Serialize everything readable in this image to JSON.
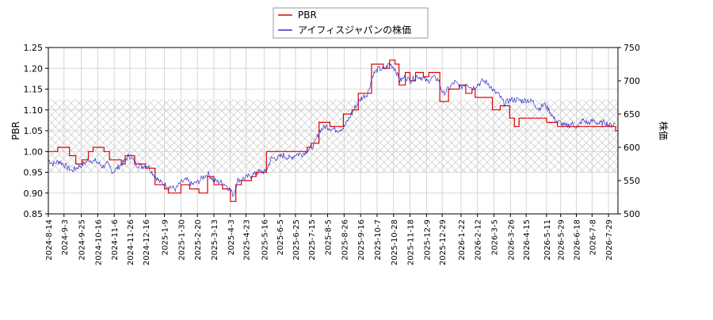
{
  "chart_data": {
    "type": "line",
    "title": "",
    "legend": {
      "placement": "top-center",
      "entries": [
        {
          "name": "PBR",
          "color": "#dd0000"
        },
        {
          "name": "アイフィスジャパンの株価",
          "color": "#3333cc"
        }
      ]
    },
    "xlabel": "",
    "ylabel_left": "PBR",
    "ylabel_right": "株価",
    "ylim_left": [
      0.85,
      1.25
    ],
    "ylim_right": [
      500,
      750
    ],
    "yticks_left": [
      "0.85",
      "0.90",
      "0.95",
      "1.00",
      "1.05",
      "1.10",
      "1.15",
      "1.20",
      "1.25"
    ],
    "yticks_right": [
      "500",
      "550",
      "600",
      "650",
      "700",
      "750"
    ],
    "xlim": [
      "2024-08-14",
      "2026-08-10"
    ],
    "xticks": [
      "2024-8-14",
      "2024-9-3",
      "2024-9-25",
      "2024-10-16",
      "2024-11-6",
      "2024-11-26",
      "2024-12-16",
      "2025-1-9",
      "2025-1-30",
      "2025-2-20",
      "2025-3-13",
      "2025-4-3",
      "2025-4-23",
      "2025-5-16",
      "2025-6-5",
      "2025-6-25",
      "2025-7-15",
      "2025-8-5",
      "2025-8-26",
      "2025-9-16",
      "2025-10-7",
      "2025-10-28",
      "2025-11-18",
      "2025-12-9",
      "2025-12-29",
      "2026-1-22",
      "2026-2-12",
      "2026-3-5",
      "2026-3-26",
      "2026-4-15",
      "2026-5-11",
      "2026-5-29",
      "2026-6-18",
      "2026-7-8",
      "2026-7-29"
    ],
    "grid": true,
    "shaded_band_pbr": [
      0.95,
      1.125
    ],
    "series": [
      {
        "name": "PBR",
        "axis": "left",
        "color": "#dd0000",
        "step": true,
        "points": [
          [
            "2024-08-14",
            1.0
          ],
          [
            "2024-08-26",
            1.01
          ],
          [
            "2024-09-10",
            0.99
          ],
          [
            "2024-09-18",
            0.97
          ],
          [
            "2024-09-26",
            0.98
          ],
          [
            "2024-10-04",
            1.0
          ],
          [
            "2024-10-10",
            1.01
          ],
          [
            "2024-10-24",
            1.0
          ],
          [
            "2024-10-31",
            0.98
          ],
          [
            "2024-11-15",
            0.97
          ],
          [
            "2024-11-20",
            0.99
          ],
          [
            "2024-12-02",
            0.97
          ],
          [
            "2024-12-16",
            0.96
          ],
          [
            "2024-12-28",
            0.92
          ],
          [
            "2025-01-09",
            0.91
          ],
          [
            "2025-01-14",
            0.9
          ],
          [
            "2025-01-30",
            0.92
          ],
          [
            "2025-02-10",
            0.91
          ],
          [
            "2025-02-22",
            0.9
          ],
          [
            "2025-03-05",
            0.94
          ],
          [
            "2025-03-13",
            0.92
          ],
          [
            "2025-03-24",
            0.91
          ],
          [
            "2025-04-03",
            0.88
          ],
          [
            "2025-04-10",
            0.92
          ],
          [
            "2025-04-17",
            0.93
          ],
          [
            "2025-04-30",
            0.94
          ],
          [
            "2025-05-06",
            0.95
          ],
          [
            "2025-05-19",
            1.0
          ],
          [
            "2025-07-10",
            1.01
          ],
          [
            "2025-07-15",
            1.02
          ],
          [
            "2025-07-25",
            1.07
          ],
          [
            "2025-08-08",
            1.06
          ],
          [
            "2025-08-18",
            1.06
          ],
          [
            "2025-08-25",
            1.09
          ],
          [
            "2025-09-05",
            1.1
          ],
          [
            "2025-09-13",
            1.14
          ],
          [
            "2025-09-30",
            1.21
          ],
          [
            "2025-10-15",
            1.2
          ],
          [
            "2025-10-23",
            1.22
          ],
          [
            "2025-10-30",
            1.21
          ],
          [
            "2025-11-04",
            1.16
          ],
          [
            "2025-11-12",
            1.19
          ],
          [
            "2025-11-18",
            1.17
          ],
          [
            "2025-11-25",
            1.19
          ],
          [
            "2025-12-05",
            1.18
          ],
          [
            "2025-12-12",
            1.19
          ],
          [
            "2025-12-26",
            1.12
          ],
          [
            "2026-01-06",
            1.15
          ],
          [
            "2026-01-20",
            1.16
          ],
          [
            "2026-01-28",
            1.14
          ],
          [
            "2026-02-05",
            1.15
          ],
          [
            "2026-02-09",
            1.13
          ],
          [
            "2026-02-25",
            1.13
          ],
          [
            "2026-03-03",
            1.1
          ],
          [
            "2026-03-13",
            1.11
          ],
          [
            "2026-03-25",
            1.08
          ],
          [
            "2026-03-31",
            1.06
          ],
          [
            "2026-04-06",
            1.08
          ],
          [
            "2026-04-24",
            1.08
          ],
          [
            "2026-05-11",
            1.07
          ],
          [
            "2026-05-25",
            1.06
          ],
          [
            "2026-08-07",
            1.05
          ]
        ]
      },
      {
        "name": "アイフィスジャパンの株価",
        "axis": "right",
        "color": "#3333cc",
        "step": false,
        "points": [
          [
            "2024-08-14",
            581
          ],
          [
            "2024-08-20",
            575
          ],
          [
            "2024-08-28",
            579
          ],
          [
            "2024-09-05",
            572
          ],
          [
            "2024-09-13",
            565
          ],
          [
            "2024-09-20",
            570
          ],
          [
            "2024-09-28",
            575
          ],
          [
            "2024-10-05",
            581
          ],
          [
            "2024-10-15",
            578
          ],
          [
            "2024-10-22",
            571
          ],
          [
            "2024-10-28",
            575
          ],
          [
            "2024-11-04",
            563
          ],
          [
            "2024-11-12",
            571
          ],
          [
            "2024-11-18",
            578
          ],
          [
            "2024-11-25",
            588
          ],
          [
            "2024-12-04",
            575
          ],
          [
            "2024-12-10",
            571
          ],
          [
            "2024-12-18",
            573
          ],
          [
            "2024-12-26",
            560
          ],
          [
            "2025-01-03",
            548
          ],
          [
            "2025-01-10",
            544
          ],
          [
            "2025-01-16",
            541
          ],
          [
            "2025-01-23",
            537
          ],
          [
            "2025-01-30",
            547
          ],
          [
            "2025-02-06",
            551
          ],
          [
            "2025-02-13",
            544
          ],
          [
            "2025-02-21",
            548
          ],
          [
            "2025-02-28",
            556
          ],
          [
            "2025-03-06",
            560
          ],
          [
            "2025-03-13",
            550
          ],
          [
            "2025-03-20",
            548
          ],
          [
            "2025-03-27",
            545
          ],
          [
            "2025-04-03",
            536
          ],
          [
            "2025-04-07",
            528
          ],
          [
            "2025-04-12",
            550
          ],
          [
            "2025-04-19",
            553
          ],
          [
            "2025-04-26",
            556
          ],
          [
            "2025-05-04",
            560
          ],
          [
            "2025-05-11",
            564
          ],
          [
            "2025-05-18",
            563
          ],
          [
            "2025-05-25",
            583
          ],
          [
            "2025-06-02",
            584
          ],
          [
            "2025-06-10",
            588
          ],
          [
            "2025-06-18",
            583
          ],
          [
            "2025-06-26",
            590
          ],
          [
            "2025-07-04",
            590
          ],
          [
            "2025-07-11",
            596
          ],
          [
            "2025-07-18",
            602
          ],
          [
            "2025-07-26",
            625
          ],
          [
            "2025-08-03",
            632
          ],
          [
            "2025-08-10",
            628
          ],
          [
            "2025-08-18",
            626
          ],
          [
            "2025-08-26",
            630
          ],
          [
            "2025-09-02",
            645
          ],
          [
            "2025-09-09",
            660
          ],
          [
            "2025-09-17",
            674
          ],
          [
            "2025-09-25",
            681
          ],
          [
            "2025-10-02",
            710
          ],
          [
            "2025-10-09",
            718
          ],
          [
            "2025-10-16",
            717
          ],
          [
            "2025-10-23",
            726
          ],
          [
            "2025-10-30",
            718
          ],
          [
            "2025-11-05",
            700
          ],
          [
            "2025-11-12",
            706
          ],
          [
            "2025-11-19",
            700
          ],
          [
            "2025-11-26",
            707
          ],
          [
            "2025-12-03",
            705
          ],
          [
            "2025-12-10",
            699
          ],
          [
            "2025-12-17",
            705
          ],
          [
            "2025-12-24",
            702
          ],
          [
            "2025-12-30",
            680
          ],
          [
            "2026-01-06",
            688
          ],
          [
            "2026-01-14",
            698
          ],
          [
            "2026-01-22",
            690
          ],
          [
            "2026-01-29",
            697
          ],
          [
            "2026-02-05",
            689
          ],
          [
            "2026-02-12",
            694
          ],
          [
            "2026-02-19",
            700
          ],
          [
            "2026-02-26",
            696
          ],
          [
            "2026-03-04",
            685
          ],
          [
            "2026-03-11",
            679
          ],
          [
            "2026-03-18",
            666
          ],
          [
            "2026-03-25",
            671
          ],
          [
            "2026-04-02",
            672
          ],
          [
            "2026-04-09",
            670
          ],
          [
            "2026-04-17",
            671
          ],
          [
            "2026-04-24",
            668
          ],
          [
            "2026-05-01",
            658
          ],
          [
            "2026-05-08",
            665
          ],
          [
            "2026-05-15",
            655
          ],
          [
            "2026-05-22",
            640
          ],
          [
            "2026-05-29",
            637
          ],
          [
            "2026-06-05",
            631
          ],
          [
            "2026-06-12",
            636
          ],
          [
            "2026-06-19",
            630
          ],
          [
            "2026-06-26",
            641
          ],
          [
            "2026-07-03",
            636
          ],
          [
            "2026-07-10",
            640
          ],
          [
            "2026-07-17",
            635
          ],
          [
            "2026-07-24",
            638
          ],
          [
            "2026-07-31",
            633
          ],
          [
            "2026-08-07",
            636
          ]
        ]
      }
    ]
  }
}
